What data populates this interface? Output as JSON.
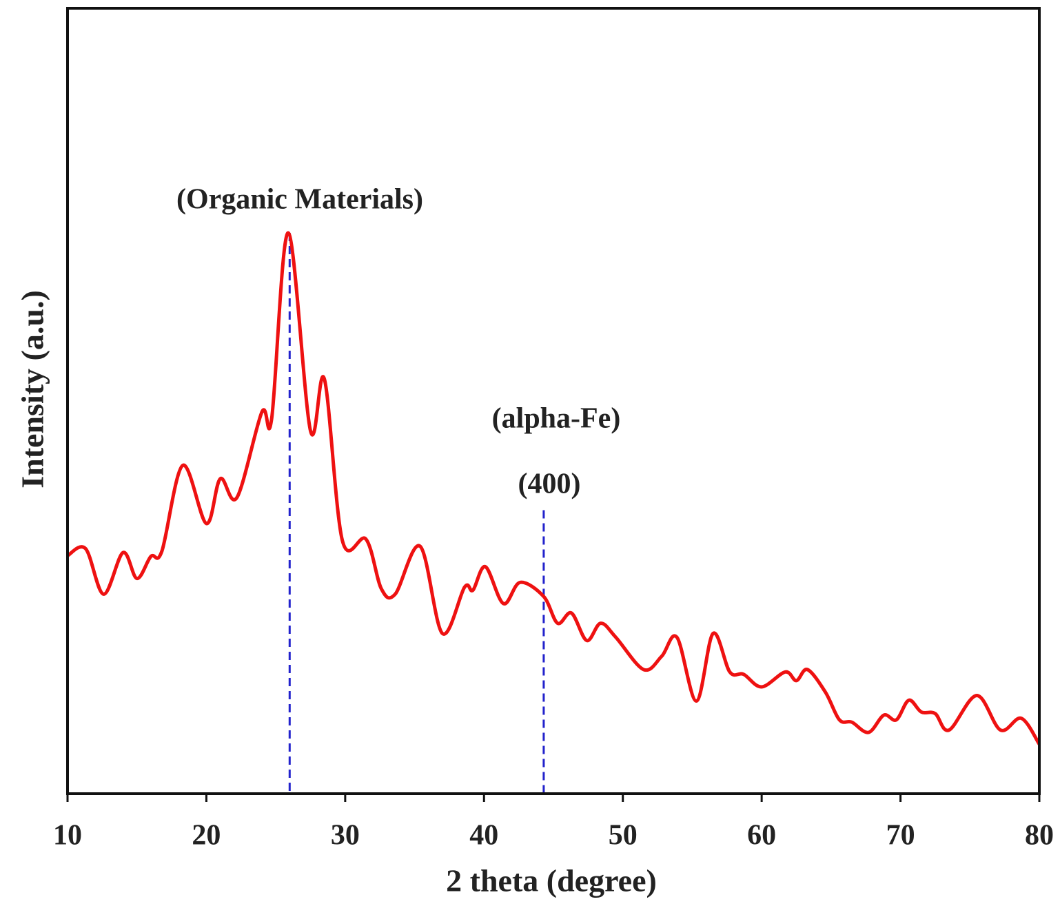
{
  "chart_data": {
    "type": "line",
    "xlabel": "2 theta (degree)",
    "ylabel": "Intensity (a.u.)",
    "x": [
      10,
      11.3,
      12.6,
      14,
      15,
      16,
      16.8,
      18.3,
      20,
      21,
      22.2,
      24,
      24.7,
      25.9,
      27.5,
      28.5,
      29.8,
      31.5,
      32.6,
      33.6,
      35.4,
      37,
      38.6,
      39.2,
      40.1,
      41.4,
      42.6,
      44.3,
      45.3,
      46.3,
      47.4,
      48.4,
      49.5,
      51.5,
      52.8,
      53.9,
      55.3,
      56.5,
      57.7,
      58.7,
      60,
      61.7,
      62.5,
      63.3,
      64.6,
      65.6,
      66.5,
      67.7,
      68.8,
      69.7,
      70.6,
      71.5,
      72.5,
      73.5,
      75.5,
      77.2,
      78.7,
      80
    ],
    "series": [
      {
        "color": "#ee1111",
        "values": [
          30.3,
          31.2,
          25.4,
          30.7,
          27.4,
          30.2,
          30.9,
          41.8,
          34.4,
          40.1,
          37.7,
          48.6,
          47.7,
          71.4,
          46.2,
          52.8,
          32.2,
          32.4,
          26.1,
          25.4,
          31.5,
          20.4,
          26.3,
          25.9,
          28.9,
          24.2,
          26.9,
          25.1,
          21.7,
          23.0,
          19.5,
          21.7,
          19.9,
          15.8,
          17.5,
          19.9,
          11.8,
          20.4,
          15.5,
          15.2,
          13.6,
          15.5,
          14.4,
          15.8,
          12.9,
          9.4,
          9.1,
          7.8,
          10.0,
          9.4,
          11.9,
          10.4,
          10.2,
          8.1,
          12.5,
          8.1,
          9.6,
          6.3
        ]
      }
    ],
    "xlim": [
      10,
      80
    ],
    "xticks": [
      10,
      20,
      30,
      40,
      50,
      60,
      70,
      80
    ],
    "ylim": [
      0,
      100
    ],
    "reference_lines": [
      {
        "x": 26,
        "top": 71.4,
        "color": "#2222cc"
      },
      {
        "x": 44.3,
        "top": 36.1,
        "color": "#2222cc"
      }
    ],
    "annotations": [
      "(Organic Materials)",
      "(alpha-Fe)",
      "(400)"
    ]
  }
}
